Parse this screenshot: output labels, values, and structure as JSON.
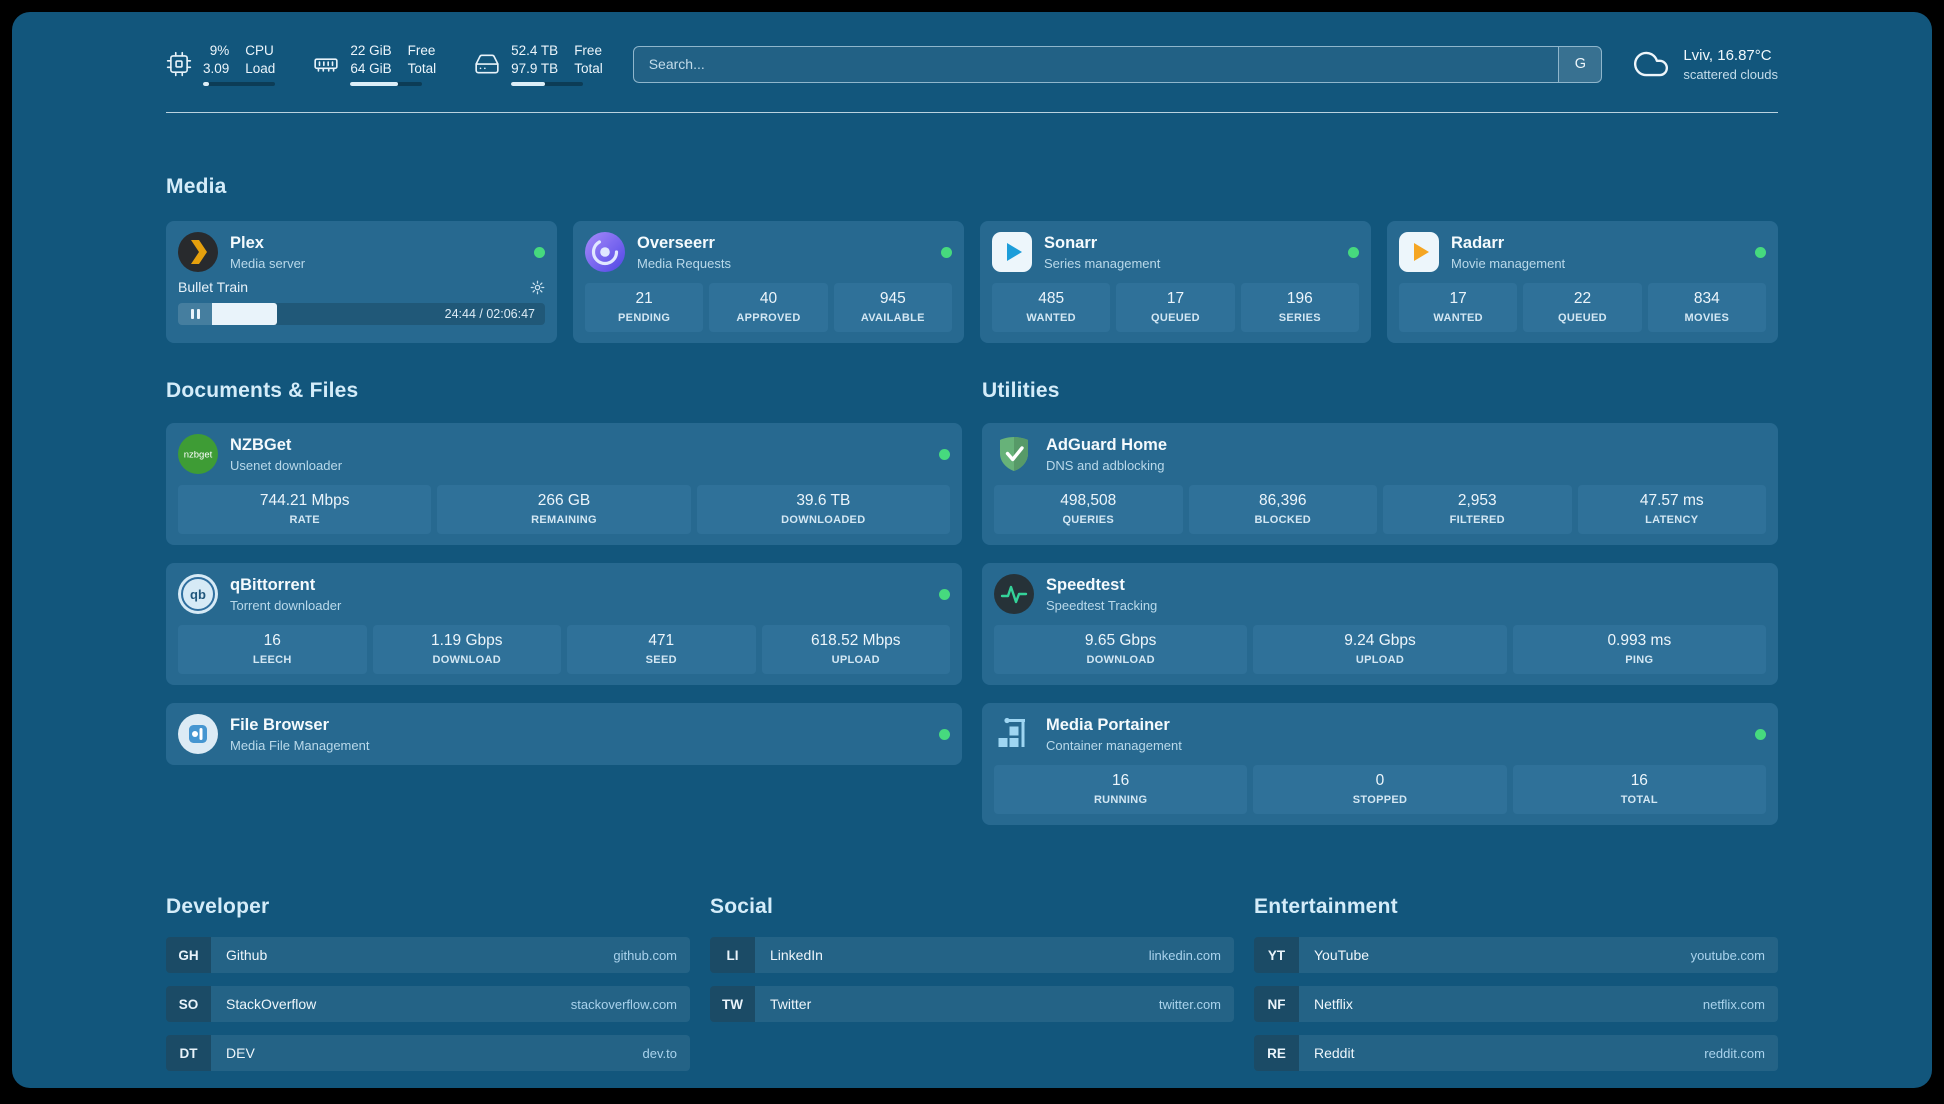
{
  "colors": {
    "status_online": "#46d97e",
    "accent_amber": "#e5a00d",
    "background": "#12567c"
  },
  "topbar": {
    "cpu": {
      "value_top": "9%",
      "value_bottom": "3.09",
      "label_top": "CPU",
      "label_bottom": "Load",
      "bar_percent": 9
    },
    "ram": {
      "value_top": "22 GiB",
      "value_bottom": "64 GiB",
      "label_top": "Free",
      "label_bottom": "Total",
      "bar_percent": 66
    },
    "disk": {
      "value_top": "52.4 TB",
      "value_bottom": "97.9 TB",
      "label_top": "Free",
      "label_bottom": "Total",
      "bar_percent": 47
    },
    "search": {
      "placeholder": "Search...",
      "engine": "G"
    },
    "weather": {
      "location": "Lviv, 16.87°C",
      "condition": "scattered clouds"
    }
  },
  "sections": {
    "media": {
      "title": "Media",
      "cards": [
        {
          "name": "Plex",
          "subtitle": "Media server",
          "media": {
            "title": "Bullet Train",
            "time": "24:44 / 02:06:47",
            "progress_percent": 19.5
          }
        },
        {
          "name": "Overseerr",
          "subtitle": "Media Requests",
          "stats": [
            {
              "value": "21",
              "label": "PENDING"
            },
            {
              "value": "40",
              "label": "APPROVED"
            },
            {
              "value": "945",
              "label": "AVAILABLE"
            }
          ]
        },
        {
          "name": "Sonarr",
          "subtitle": "Series management",
          "stats": [
            {
              "value": "485",
              "label": "WANTED"
            },
            {
              "value": "17",
              "label": "QUEUED"
            },
            {
              "value": "196",
              "label": "SERIES"
            }
          ]
        },
        {
          "name": "Radarr",
          "subtitle": "Movie management",
          "stats": [
            {
              "value": "17",
              "label": "WANTED"
            },
            {
              "value": "22",
              "label": "QUEUED"
            },
            {
              "value": "834",
              "label": "MOVIES"
            }
          ]
        }
      ]
    },
    "documents": {
      "title": "Documents & Files",
      "cards": [
        {
          "name": "NZBGet",
          "subtitle": "Usenet downloader",
          "stats": [
            {
              "value": "744.21 Mbps",
              "label": "RATE"
            },
            {
              "value": "266 GB",
              "label": "REMAINING"
            },
            {
              "value": "39.6 TB",
              "label": "DOWNLOADED"
            }
          ]
        },
        {
          "name": "qBittorrent",
          "subtitle": "Torrent downloader",
          "stats": [
            {
              "value": "16",
              "label": "LEECH"
            },
            {
              "value": "1.19 Gbps",
              "label": "DOWNLOAD"
            },
            {
              "value": "471",
              "label": "SEED"
            },
            {
              "value": "618.52 Mbps",
              "label": "UPLOAD"
            }
          ]
        },
        {
          "name": "File Browser",
          "subtitle": "Media File Management",
          "stats": []
        }
      ]
    },
    "utilities": {
      "title": "Utilities",
      "cards": [
        {
          "name": "AdGuard Home",
          "subtitle": "DNS and adblocking",
          "stats": [
            {
              "value": "498,508",
              "label": "QUERIES"
            },
            {
              "value": "86,396",
              "label": "BLOCKED"
            },
            {
              "value": "2,953",
              "label": "FILTERED"
            },
            {
              "value": "47.57 ms",
              "label": "LATENCY"
            }
          ]
        },
        {
          "name": "Speedtest",
          "subtitle": "Speedtest Tracking",
          "stats": [
            {
              "value": "9.65 Gbps",
              "label": "DOWNLOAD"
            },
            {
              "value": "9.24 Gbps",
              "label": "UPLOAD"
            },
            {
              "value": "0.993 ms",
              "label": "PING"
            }
          ]
        },
        {
          "name": "Media Portainer",
          "subtitle": "Container management",
          "stats": [
            {
              "value": "16",
              "label": "RUNNING"
            },
            {
              "value": "0",
              "label": "STOPPED"
            },
            {
              "value": "16",
              "label": "TOTAL"
            }
          ]
        }
      ]
    },
    "links": [
      {
        "title": "Developer",
        "items": [
          {
            "abbr": "GH",
            "name": "Github",
            "url": "github.com"
          },
          {
            "abbr": "SO",
            "name": "StackOverflow",
            "url": "stackoverflow.com"
          },
          {
            "abbr": "DT",
            "name": "DEV",
            "url": "dev.to"
          }
        ]
      },
      {
        "title": "Social",
        "items": [
          {
            "abbr": "LI",
            "name": "LinkedIn",
            "url": "linkedin.com"
          },
          {
            "abbr": "TW",
            "name": "Twitter",
            "url": "twitter.com"
          }
        ]
      },
      {
        "title": "Entertainment",
        "items": [
          {
            "abbr": "YT",
            "name": "YouTube",
            "url": "youtube.com"
          },
          {
            "abbr": "NF",
            "name": "Netflix",
            "url": "netflix.com"
          },
          {
            "abbr": "RE",
            "name": "Reddit",
            "url": "reddit.com"
          }
        ]
      }
    ]
  }
}
